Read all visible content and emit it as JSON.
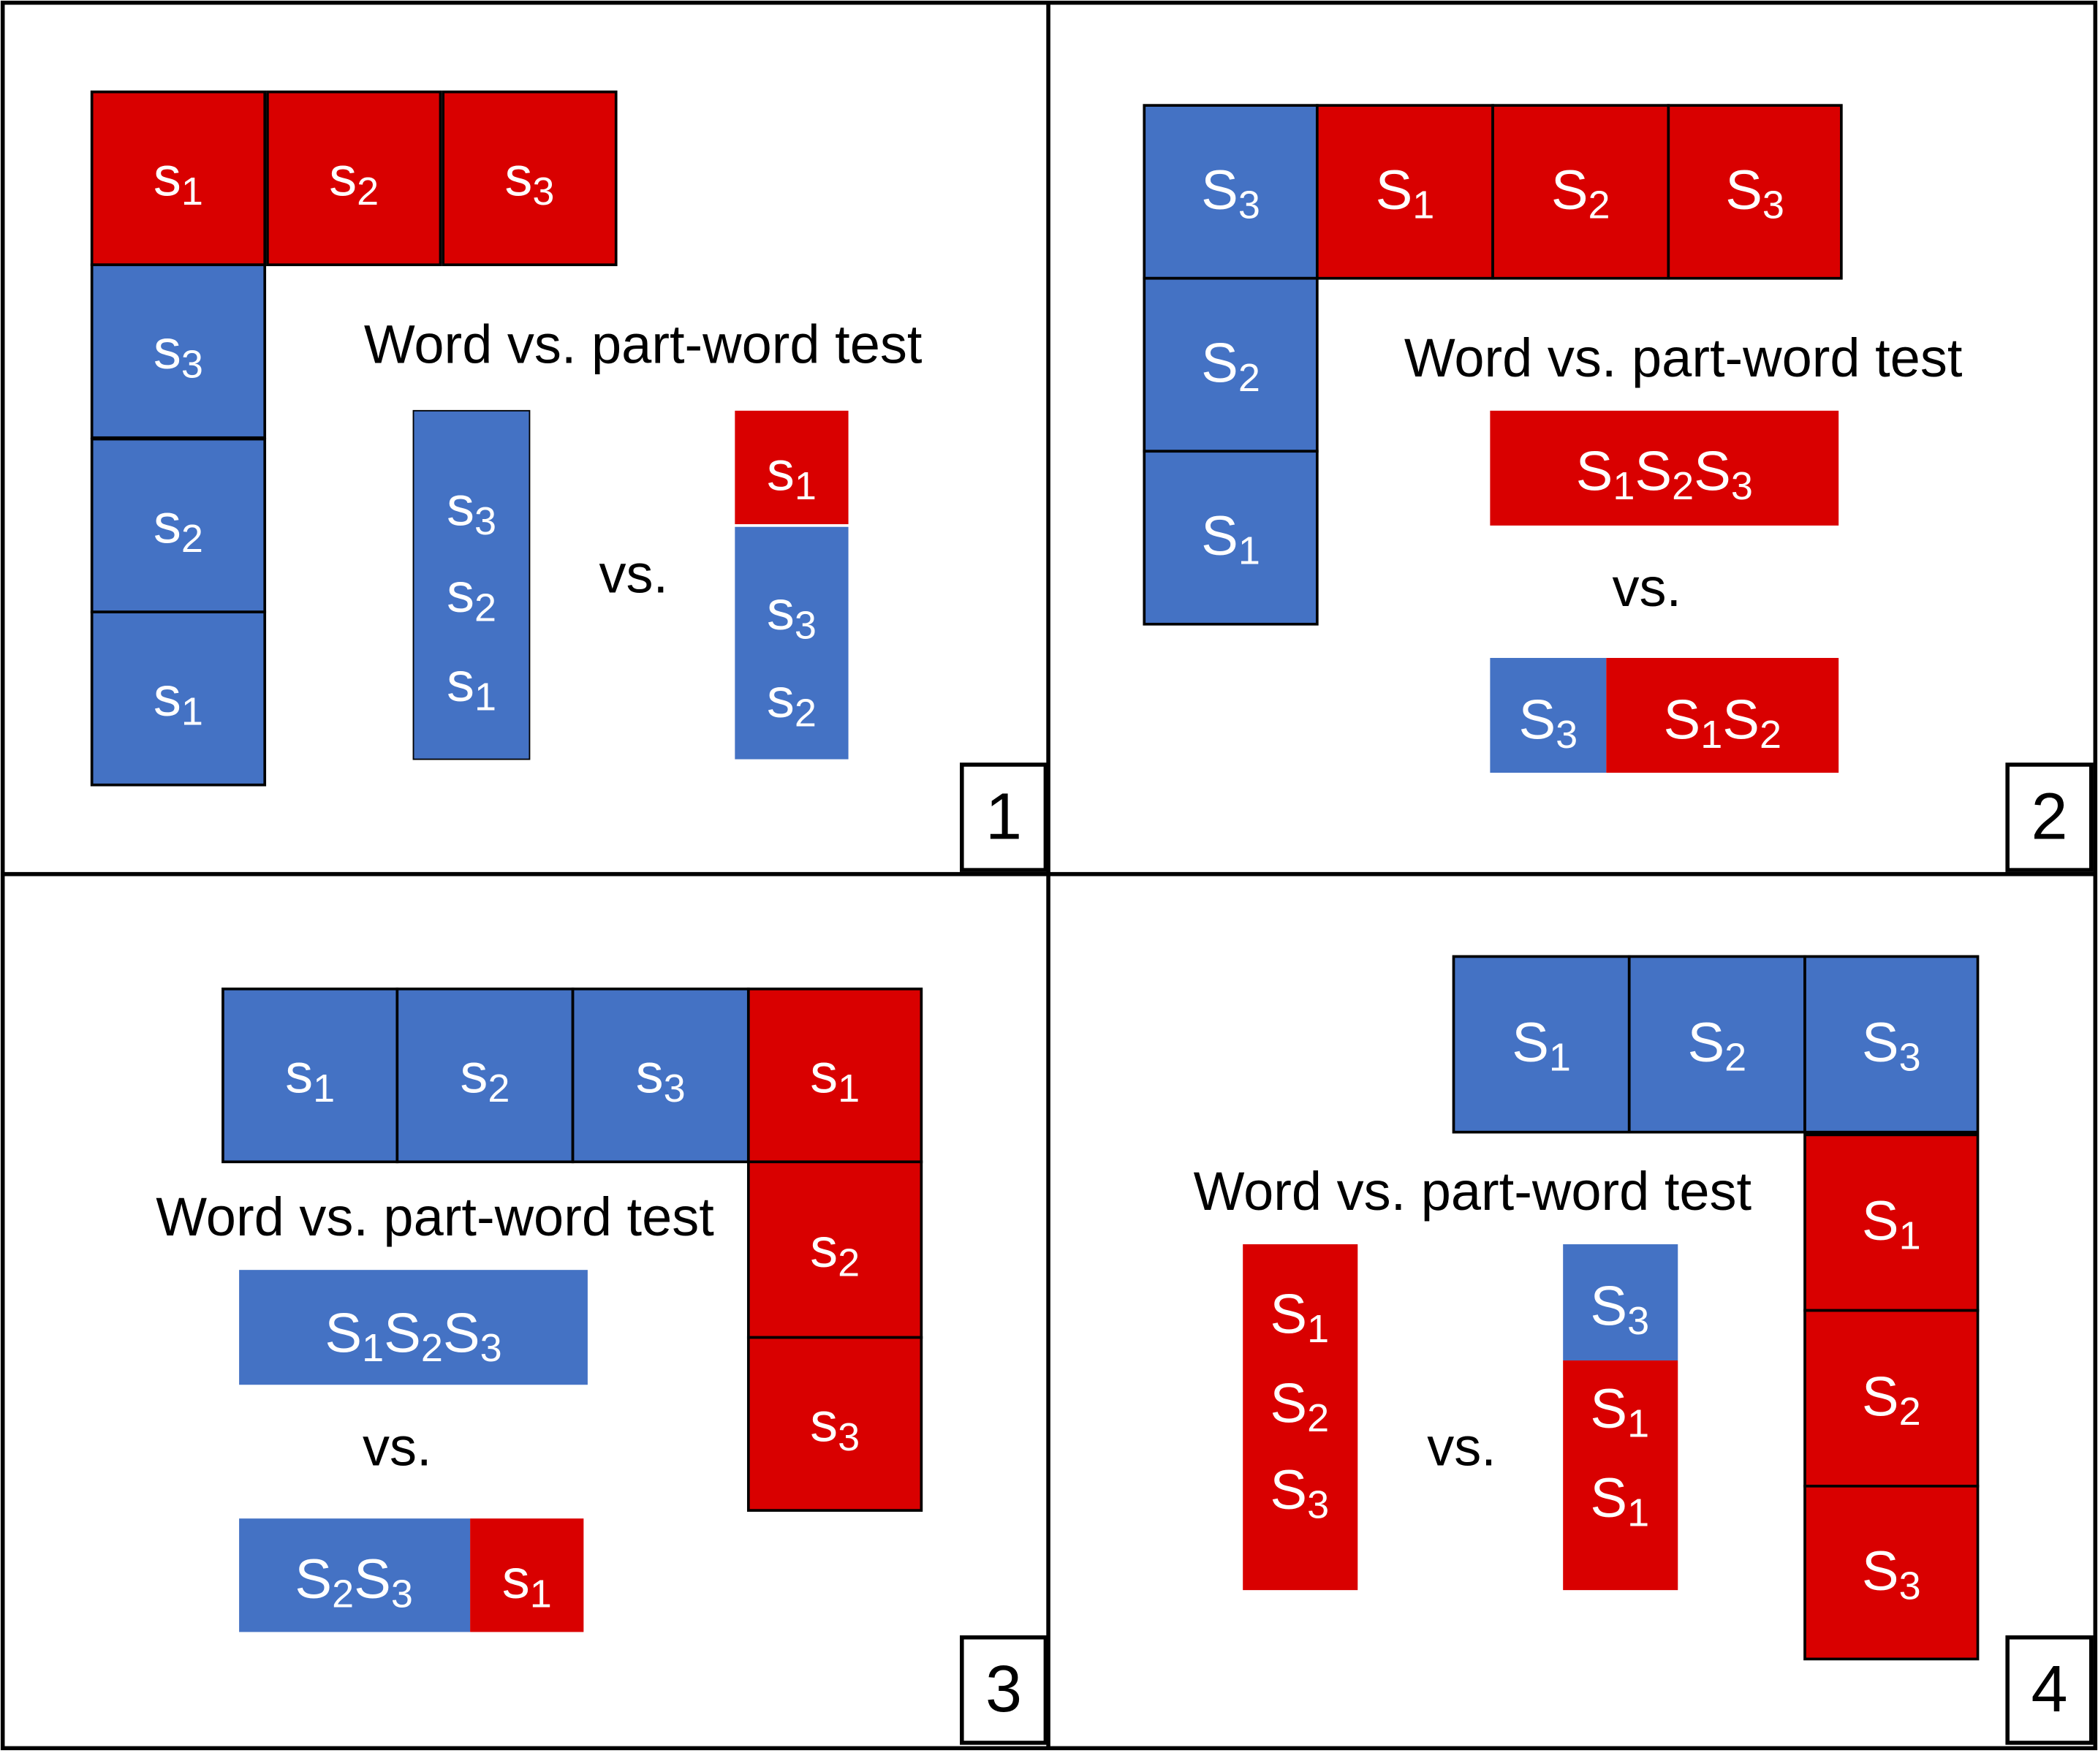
{
  "heading": "Word vs. part-word test",
  "vs": "vs.",
  "colors": {
    "blue": "#4472c4",
    "red": "#d90000"
  },
  "panels": [
    {
      "number": "1",
      "stream": [
        {
          "b": "s",
          "n": "1",
          "color": "red"
        },
        {
          "b": "s",
          "n": "2",
          "color": "red"
        },
        {
          "b": "s",
          "n": "3",
          "color": "red"
        },
        {
          "b": "s",
          "n": "3",
          "color": "blue"
        },
        {
          "b": "s",
          "n": "2",
          "color": "blue"
        },
        {
          "b": "s",
          "n": "1",
          "color": "blue"
        }
      ],
      "word": [
        {
          "b": "s",
          "n": "3",
          "color": "blue"
        },
        {
          "b": "s",
          "n": "2",
          "color": "blue"
        },
        {
          "b": "s",
          "n": "1",
          "color": "blue"
        }
      ],
      "part_word": [
        {
          "b": "s",
          "n": "1",
          "color": "red"
        },
        {
          "b": "s",
          "n": "3",
          "color": "blue"
        },
        {
          "b": "s",
          "n": "2",
          "color": "blue"
        }
      ]
    },
    {
      "number": "2",
      "stream": [
        {
          "b": "S",
          "n": "3",
          "color": "blue"
        },
        {
          "b": "S",
          "n": "1",
          "color": "red"
        },
        {
          "b": "S",
          "n": "2",
          "color": "red"
        },
        {
          "b": "S",
          "n": "3",
          "color": "red"
        },
        {
          "b": "S",
          "n": "2",
          "color": "blue"
        },
        {
          "b": "S",
          "n": "1",
          "color": "blue"
        }
      ],
      "word": [
        {
          "b": "S",
          "n": "1",
          "color": "red"
        },
        {
          "b": "S",
          "n": "2",
          "color": "red"
        },
        {
          "b": "S",
          "n": "3",
          "color": "red"
        }
      ],
      "part_word": [
        {
          "b": "S",
          "n": "3",
          "color": "blue"
        },
        {
          "b": "S",
          "n": "1",
          "color": "red"
        },
        {
          "b": "S",
          "n": "2",
          "color": "red"
        }
      ]
    },
    {
      "number": "3",
      "stream": [
        {
          "b": "s",
          "n": "1",
          "color": "blue"
        },
        {
          "b": "s",
          "n": "2",
          "color": "blue"
        },
        {
          "b": "s",
          "n": "3",
          "color": "blue"
        },
        {
          "b": "s",
          "n": "1",
          "color": "red"
        },
        {
          "b": "s",
          "n": "2",
          "color": "red"
        },
        {
          "b": "s",
          "n": "3",
          "color": "red"
        }
      ],
      "word": [
        {
          "b": "S",
          "n": "1",
          "color": "blue"
        },
        {
          "b": "S",
          "n": "2",
          "color": "blue"
        },
        {
          "b": "S",
          "n": "3",
          "color": "blue"
        }
      ],
      "part_word": [
        {
          "b": "S",
          "n": "2",
          "color": "blue"
        },
        {
          "b": "S",
          "n": "3",
          "color": "blue"
        },
        {
          "b": "s",
          "n": "1",
          "color": "red"
        }
      ]
    },
    {
      "number": "4",
      "stream": [
        {
          "b": "S",
          "n": "1",
          "color": "blue"
        },
        {
          "b": "S",
          "n": "2",
          "color": "blue"
        },
        {
          "b": "S",
          "n": "3",
          "color": "blue"
        },
        {
          "b": "S",
          "n": "1",
          "color": "red"
        },
        {
          "b": "S",
          "n": "2",
          "color": "red"
        },
        {
          "b": "S",
          "n": "3",
          "color": "red"
        }
      ],
      "word": [
        {
          "b": "S",
          "n": "1",
          "color": "red"
        },
        {
          "b": "S",
          "n": "2",
          "color": "red"
        },
        {
          "b": "S",
          "n": "3",
          "color": "red"
        }
      ],
      "part_word": [
        {
          "b": "S",
          "n": "3",
          "color": "blue"
        },
        {
          "b": "S",
          "n": "1",
          "color": "red"
        },
        {
          "b": "S",
          "n": "1",
          "color": "red"
        }
      ]
    }
  ]
}
